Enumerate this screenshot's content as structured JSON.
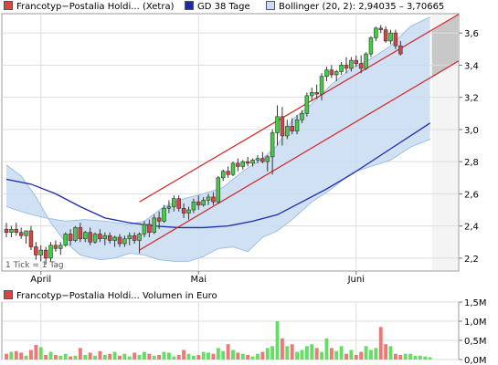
{
  "legend": {
    "price_label": "Francotyp−Postalia Holdi... (Xetra)",
    "gd_label": "GD 38 Tage",
    "bollinger_label": "Bollinger (20, 2): 2,94035 – 3,70665",
    "volume_label": "Francotyp−Postalia Holdi... Volumen in Euro",
    "price_color": "#d94444",
    "gd_color": "#1a2aa8",
    "bollinger_color": "#c9dcf2",
    "volume_color": "#d94444"
  },
  "note": "1 Tick = 1 Tag",
  "chart_data": [
    {
      "type": "candlestick",
      "title": "",
      "x_ticks": [
        {
          "label": "April",
          "day": 7
        },
        {
          "label": "Mai",
          "day": 39
        },
        {
          "label": "Juni",
          "day": 71
        }
      ],
      "y_ticks": [
        "2,2",
        "2,4",
        "2,6",
        "2,8",
        "3,0",
        "3,2",
        "3,4",
        "3,6"
      ],
      "y_tick_values": [
        2.2,
        2.4,
        2.6,
        2.8,
        3.0,
        3.2,
        3.4,
        3.6
      ],
      "ylim": [
        2.12,
        3.72
      ],
      "grid": true,
      "axis_side": "right",
      "candles": [
        {
          "o": 2.38,
          "h": 2.42,
          "l": 2.33,
          "c": 2.36
        },
        {
          "o": 2.36,
          "h": 2.4,
          "l": 2.33,
          "c": 2.38
        },
        {
          "o": 2.38,
          "h": 2.42,
          "l": 2.34,
          "c": 2.36
        },
        {
          "o": 2.36,
          "h": 2.39,
          "l": 2.32,
          "c": 2.34
        },
        {
          "o": 2.34,
          "h": 2.37,
          "l": 2.29,
          "c": 2.37
        },
        {
          "o": 2.37,
          "h": 2.4,
          "l": 2.25,
          "c": 2.27
        },
        {
          "o": 2.27,
          "h": 2.3,
          "l": 2.19,
          "c": 2.22
        },
        {
          "o": 2.22,
          "h": 2.28,
          "l": 2.18,
          "c": 2.25
        },
        {
          "o": 2.25,
          "h": 2.27,
          "l": 2.16,
          "c": 2.2
        },
        {
          "o": 2.2,
          "h": 2.3,
          "l": 2.18,
          "c": 2.28
        },
        {
          "o": 2.28,
          "h": 2.31,
          "l": 2.24,
          "c": 2.26
        },
        {
          "o": 2.26,
          "h": 2.3,
          "l": 2.22,
          "c": 2.28
        },
        {
          "o": 2.28,
          "h": 2.36,
          "l": 2.27,
          "c": 2.35
        },
        {
          "o": 2.35,
          "h": 2.38,
          "l": 2.28,
          "c": 2.31
        },
        {
          "o": 2.31,
          "h": 2.4,
          "l": 2.3,
          "c": 2.39
        },
        {
          "o": 2.39,
          "h": 2.42,
          "l": 2.3,
          "c": 2.32
        },
        {
          "o": 2.32,
          "h": 2.37,
          "l": 2.3,
          "c": 2.36
        },
        {
          "o": 2.36,
          "h": 2.39,
          "l": 2.28,
          "c": 2.3
        },
        {
          "o": 2.3,
          "h": 2.36,
          "l": 2.29,
          "c": 2.35
        },
        {
          "o": 2.35,
          "h": 2.38,
          "l": 2.3,
          "c": 2.32
        },
        {
          "o": 2.32,
          "h": 2.36,
          "l": 2.28,
          "c": 2.34
        },
        {
          "o": 2.34,
          "h": 2.36,
          "l": 2.29,
          "c": 2.31
        },
        {
          "o": 2.31,
          "h": 2.34,
          "l": 2.27,
          "c": 2.33
        },
        {
          "o": 2.33,
          "h": 2.35,
          "l": 2.27,
          "c": 2.29
        },
        {
          "o": 2.29,
          "h": 2.34,
          "l": 2.27,
          "c": 2.32
        },
        {
          "o": 2.32,
          "h": 2.36,
          "l": 2.28,
          "c": 2.34
        },
        {
          "o": 2.34,
          "h": 2.36,
          "l": 2.29,
          "c": 2.31
        },
        {
          "o": 2.31,
          "h": 2.36,
          "l": 2.23,
          "c": 2.35
        },
        {
          "o": 2.35,
          "h": 2.43,
          "l": 2.33,
          "c": 2.41
        },
        {
          "o": 2.41,
          "h": 2.44,
          "l": 2.33,
          "c": 2.36
        },
        {
          "o": 2.36,
          "h": 2.47,
          "l": 2.35,
          "c": 2.45
        },
        {
          "o": 2.45,
          "h": 2.49,
          "l": 2.38,
          "c": 2.43
        },
        {
          "o": 2.43,
          "h": 2.53,
          "l": 2.42,
          "c": 2.51
        },
        {
          "o": 2.51,
          "h": 2.56,
          "l": 2.48,
          "c": 2.52
        },
        {
          "o": 2.52,
          "h": 2.59,
          "l": 2.49,
          "c": 2.57
        },
        {
          "o": 2.57,
          "h": 2.59,
          "l": 2.49,
          "c": 2.51
        },
        {
          "o": 2.51,
          "h": 2.54,
          "l": 2.45,
          "c": 2.48
        },
        {
          "o": 2.48,
          "h": 2.52,
          "l": 2.44,
          "c": 2.5
        },
        {
          "o": 2.5,
          "h": 2.57,
          "l": 2.48,
          "c": 2.55
        },
        {
          "o": 2.55,
          "h": 2.59,
          "l": 2.5,
          "c": 2.53
        },
        {
          "o": 2.53,
          "h": 2.58,
          "l": 2.52,
          "c": 2.56
        },
        {
          "o": 2.56,
          "h": 2.6,
          "l": 2.53,
          "c": 2.58
        },
        {
          "o": 2.58,
          "h": 2.61,
          "l": 2.53,
          "c": 2.55
        },
        {
          "o": 2.55,
          "h": 2.71,
          "l": 2.54,
          "c": 2.7
        },
        {
          "o": 2.7,
          "h": 2.75,
          "l": 2.68,
          "c": 2.74
        },
        {
          "o": 2.74,
          "h": 2.77,
          "l": 2.7,
          "c": 2.72
        },
        {
          "o": 2.72,
          "h": 2.8,
          "l": 2.71,
          "c": 2.79
        },
        {
          "o": 2.79,
          "h": 2.82,
          "l": 2.74,
          "c": 2.77
        },
        {
          "o": 2.77,
          "h": 2.81,
          "l": 2.75,
          "c": 2.8
        },
        {
          "o": 2.8,
          "h": 2.83,
          "l": 2.77,
          "c": 2.79
        },
        {
          "o": 2.79,
          "h": 2.82,
          "l": 2.77,
          "c": 2.81
        },
        {
          "o": 2.81,
          "h": 2.84,
          "l": 2.79,
          "c": 2.82
        },
        {
          "o": 2.82,
          "h": 2.86,
          "l": 2.79,
          "c": 2.8
        },
        {
          "o": 2.8,
          "h": 2.84,
          "l": 2.74,
          "c": 2.83
        },
        {
          "o": 2.83,
          "h": 3.0,
          "l": 2.72,
          "c": 2.98
        },
        {
          "o": 2.98,
          "h": 3.15,
          "l": 2.9,
          "c": 3.08
        },
        {
          "o": 3.08,
          "h": 3.14,
          "l": 2.9,
          "c": 2.96
        },
        {
          "o": 2.96,
          "h": 3.06,
          "l": 2.94,
          "c": 3.02
        },
        {
          "o": 3.02,
          "h": 3.07,
          "l": 2.97,
          "c": 2.99
        },
        {
          "o": 2.99,
          "h": 3.09,
          "l": 2.97,
          "c": 3.06
        },
        {
          "o": 3.06,
          "h": 3.12,
          "l": 3.04,
          "c": 3.1
        },
        {
          "o": 3.1,
          "h": 3.23,
          "l": 3.08,
          "c": 3.21
        },
        {
          "o": 3.21,
          "h": 3.26,
          "l": 3.18,
          "c": 3.23
        },
        {
          "o": 3.23,
          "h": 3.28,
          "l": 3.19,
          "c": 3.22
        },
        {
          "o": 3.22,
          "h": 3.35,
          "l": 3.18,
          "c": 3.33
        },
        {
          "o": 3.33,
          "h": 3.39,
          "l": 3.3,
          "c": 3.37
        },
        {
          "o": 3.37,
          "h": 3.4,
          "l": 3.32,
          "c": 3.34
        },
        {
          "o": 3.34,
          "h": 3.37,
          "l": 3.3,
          "c": 3.36
        },
        {
          "o": 3.36,
          "h": 3.42,
          "l": 3.34,
          "c": 3.4
        },
        {
          "o": 3.4,
          "h": 3.45,
          "l": 3.35,
          "c": 3.38
        },
        {
          "o": 3.38,
          "h": 3.45,
          "l": 3.36,
          "c": 3.43
        },
        {
          "o": 3.43,
          "h": 3.46,
          "l": 3.39,
          "c": 3.41
        },
        {
          "o": 3.41,
          "h": 3.46,
          "l": 3.35,
          "c": 3.38
        },
        {
          "o": 3.38,
          "h": 3.48,
          "l": 3.37,
          "c": 3.47
        },
        {
          "o": 3.47,
          "h": 3.58,
          "l": 3.45,
          "c": 3.57
        },
        {
          "o": 3.57,
          "h": 3.64,
          "l": 3.55,
          "c": 3.63
        },
        {
          "o": 3.63,
          "h": 3.65,
          "l": 3.6,
          "c": 3.62
        },
        {
          "o": 3.62,
          "h": 3.64,
          "l": 3.54,
          "c": 3.55
        },
        {
          "o": 3.55,
          "h": 3.62,
          "l": 3.53,
          "c": 3.6
        },
        {
          "o": 3.6,
          "h": 3.62,
          "l": 3.5,
          "c": 3.52
        },
        {
          "o": 3.52,
          "h": 3.55,
          "l": 3.46,
          "c": 3.47
        }
      ],
      "gd": [
        {
          "d": 0,
          "v": 2.69
        },
        {
          "d": 5,
          "v": 2.66
        },
        {
          "d": 10,
          "v": 2.6
        },
        {
          "d": 15,
          "v": 2.52
        },
        {
          "d": 20,
          "v": 2.45
        },
        {
          "d": 25,
          "v": 2.42
        },
        {
          "d": 30,
          "v": 2.4
        },
        {
          "d": 35,
          "v": 2.39
        },
        {
          "d": 40,
          "v": 2.39
        },
        {
          "d": 45,
          "v": 2.4
        },
        {
          "d": 50,
          "v": 2.43
        },
        {
          "d": 55,
          "v": 2.47
        },
        {
          "d": 60,
          "v": 2.55
        },
        {
          "d": 65,
          "v": 2.63
        },
        {
          "d": 70,
          "v": 2.72
        },
        {
          "d": 75,
          "v": 2.82
        },
        {
          "d": 80,
          "v": 2.92
        },
        {
          "d": 84,
          "v": 3.0
        },
        {
          "d": 86,
          "v": 3.04
        }
      ],
      "bollinger_upper": [
        {
          "d": 0,
          "v": 2.52
        },
        {
          "d": 4,
          "v": 2.48
        },
        {
          "d": 8,
          "v": 2.45
        },
        {
          "d": 12,
          "v": 2.43
        },
        {
          "d": 16,
          "v": 2.44
        },
        {
          "d": 20,
          "v": 2.43
        },
        {
          "d": 25,
          "v": 2.41
        },
        {
          "d": 28,
          "v": 2.43
        },
        {
          "d": 32,
          "v": 2.52
        },
        {
          "d": 36,
          "v": 2.57
        },
        {
          "d": 40,
          "v": 2.6
        },
        {
          "d": 44,
          "v": 2.64
        },
        {
          "d": 48,
          "v": 2.74
        },
        {
          "d": 52,
          "v": 2.82
        },
        {
          "d": 55,
          "v": 2.9
        },
        {
          "d": 58,
          "v": 3.06
        },
        {
          "d": 62,
          "v": 3.16
        },
        {
          "d": 66,
          "v": 3.28
        },
        {
          "d": 70,
          "v": 3.38
        },
        {
          "d": 74,
          "v": 3.44
        },
        {
          "d": 78,
          "v": 3.52
        },
        {
          "d": 82,
          "v": 3.64
        },
        {
          "d": 86,
          "v": 3.7
        }
      ],
      "bollinger_lower": [
        {
          "d": 0,
          "v": 2.78
        },
        {
          "d": 3,
          "v": 2.71
        },
        {
          "d": 6,
          "v": 2.58
        },
        {
          "d": 9,
          "v": 2.42
        },
        {
          "d": 12,
          "v": 2.3
        },
        {
          "d": 15,
          "v": 2.22
        },
        {
          "d": 19,
          "v": 2.19
        },
        {
          "d": 22,
          "v": 2.2
        },
        {
          "d": 25,
          "v": 2.23
        },
        {
          "d": 28,
          "v": 2.22
        },
        {
          "d": 31,
          "v": 2.19
        },
        {
          "d": 34,
          "v": 2.18
        },
        {
          "d": 37,
          "v": 2.18
        },
        {
          "d": 40,
          "v": 2.21
        },
        {
          "d": 43,
          "v": 2.26
        },
        {
          "d": 46,
          "v": 2.27
        },
        {
          "d": 49,
          "v": 2.24
        },
        {
          "d": 52,
          "v": 2.33
        },
        {
          "d": 55,
          "v": 2.37
        },
        {
          "d": 58,
          "v": 2.44
        },
        {
          "d": 62,
          "v": 2.55
        },
        {
          "d": 66,
          "v": 2.63
        },
        {
          "d": 70,
          "v": 2.73
        },
        {
          "d": 74,
          "v": 2.77
        },
        {
          "d": 78,
          "v": 2.81
        },
        {
          "d": 82,
          "v": 2.89
        },
        {
          "d": 86,
          "v": 2.94
        }
      ],
      "trend_channel": {
        "upper": [
          {
            "d": 27,
            "v": 2.55
          },
          {
            "d": 92,
            "v": 3.72
          }
        ],
        "lower": [
          {
            "d": 27,
            "v": 2.25
          },
          {
            "d": 92,
            "v": 3.43
          }
        ],
        "forecast_from_day": 86
      }
    },
    {
      "type": "bar",
      "title": "",
      "y_ticks": [
        "0,0M",
        "0,5M",
        "1,0M",
        "1,5M"
      ],
      "y_tick_values": [
        0,
        0.5,
        1.0,
        1.5
      ],
      "ylim": [
        0,
        1.5
      ],
      "unit": "M Euro",
      "values": [
        0.15,
        0.2,
        0.22,
        0.18,
        0.1,
        0.25,
        0.38,
        0.32,
        0.12,
        0.2,
        0.12,
        0.1,
        0.15,
        0.08,
        0.1,
        0.3,
        0.12,
        0.18,
        0.1,
        0.22,
        0.12,
        0.15,
        0.2,
        0.1,
        0.15,
        0.08,
        0.18,
        0.12,
        0.2,
        0.15,
        0.1,
        0.12,
        0.2,
        0.18,
        0.08,
        0.12,
        0.25,
        0.15,
        0.1,
        0.12,
        0.2,
        0.18,
        0.15,
        0.3,
        0.22,
        0.4,
        0.25,
        0.18,
        0.15,
        0.12,
        0.08,
        0.15,
        0.2,
        0.3,
        0.35,
        1.0,
        0.55,
        0.35,
        0.4,
        0.2,
        0.25,
        0.35,
        0.4,
        0.3,
        0.2,
        0.55,
        0.3,
        0.22,
        0.35,
        0.15,
        0.25,
        0.12,
        0.2,
        0.35,
        0.25,
        0.3,
        0.85,
        0.4,
        0.35,
        0.15,
        0.12,
        0.15,
        0.15,
        0.1,
        0.1,
        0.08,
        0.06
      ],
      "up_flags_from": "candles"
    }
  ]
}
